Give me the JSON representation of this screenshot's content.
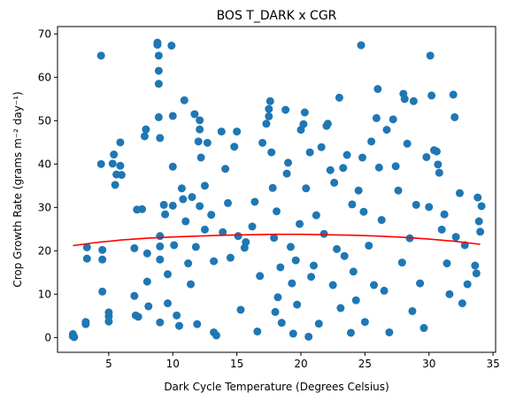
{
  "chart_data": {
    "type": "scatter",
    "title": "BOS T_DARK x CGR",
    "xlabel": "Dark Cycle Temperature (Degrees Celsius)",
    "ylabel": "Crop Growth Rate (grams m⁻² day⁻¹)",
    "xlim": [
      1,
      35.2
    ],
    "ylim": [
      -3.4,
      71.7
    ],
    "xticks": [
      5,
      10,
      15,
      20,
      25,
      30,
      35
    ],
    "yticks": [
      0,
      10,
      20,
      30,
      40,
      50,
      60,
      70
    ],
    "grid": false,
    "legend": "none",
    "colors": {
      "points": "#1f77b4",
      "fit": "#ff0000"
    },
    "series": [
      {
        "type": "scatter",
        "points": [
          [
            2.2,
            0.3
          ],
          [
            2.2,
            0.8
          ],
          [
            2.3,
            0.1
          ],
          [
            3.2,
            3.1
          ],
          [
            3.2,
            3.6
          ],
          [
            3.3,
            18.2
          ],
          [
            3.3,
            20.8
          ],
          [
            4.4,
            65.0
          ],
          [
            4.4,
            40.0
          ],
          [
            4.5,
            20.2
          ],
          [
            4.5,
            18.0
          ],
          [
            4.5,
            10.6
          ],
          [
            5.0,
            5.8
          ],
          [
            5.0,
            4.9
          ],
          [
            5.0,
            3.7
          ],
          [
            5.3,
            40.1
          ],
          [
            5.4,
            42.2
          ],
          [
            5.5,
            35.2
          ],
          [
            5.6,
            37.6
          ],
          [
            5.9,
            45.0
          ],
          [
            5.9,
            39.6
          ],
          [
            6.0,
            37.5
          ],
          [
            7.0,
            20.6
          ],
          [
            7.0,
            9.6
          ],
          [
            7.1,
            5.1
          ],
          [
            7.2,
            29.5
          ],
          [
            7.3,
            4.8
          ],
          [
            7.6,
            29.6
          ],
          [
            7.8,
            46.4
          ],
          [
            7.9,
            48.0
          ],
          [
            8.0,
            19.4
          ],
          [
            8.0,
            12.9
          ],
          [
            8.1,
            7.2
          ],
          [
            8.8,
            68.0
          ],
          [
            8.8,
            67.5
          ],
          [
            8.9,
            65.0
          ],
          [
            8.9,
            61.5
          ],
          [
            8.9,
            58.5
          ],
          [
            8.9,
            50.8
          ],
          [
            9.0,
            46.0
          ],
          [
            9.0,
            23.4
          ],
          [
            9.0,
            21.0
          ],
          [
            9.0,
            18.0
          ],
          [
            9.0,
            3.5
          ],
          [
            9.3,
            30.6
          ],
          [
            9.4,
            28.4
          ],
          [
            9.6,
            14.6
          ],
          [
            9.6,
            7.9
          ],
          [
            9.9,
            67.3
          ],
          [
            10.0,
            51.1
          ],
          [
            10.0,
            39.4
          ],
          [
            10.0,
            30.4
          ],
          [
            10.1,
            21.3
          ],
          [
            10.3,
            5.1
          ],
          [
            10.5,
            2.7
          ],
          [
            10.7,
            34.4
          ],
          [
            10.8,
            31.9
          ],
          [
            10.9,
            54.7
          ],
          [
            11.0,
            26.8
          ],
          [
            11.2,
            17.1
          ],
          [
            11.4,
            12.3
          ],
          [
            11.5,
            32.4
          ],
          [
            11.7,
            51.5
          ],
          [
            11.8,
            20.9
          ],
          [
            11.9,
            3.1
          ],
          [
            12.0,
            45.2
          ],
          [
            12.1,
            30.3
          ],
          [
            12.1,
            50.1
          ],
          [
            12.1,
            48.0
          ],
          [
            12.2,
            41.5
          ],
          [
            12.5,
            35.0
          ],
          [
            12.5,
            24.9
          ],
          [
            12.7,
            44.9
          ],
          [
            13.0,
            28.3
          ],
          [
            13.2,
            17.6
          ],
          [
            13.2,
            1.2
          ],
          [
            13.4,
            0.5
          ],
          [
            13.8,
            47.5
          ],
          [
            13.9,
            24.3
          ],
          [
            14.1,
            38.9
          ],
          [
            14.3,
            31.0
          ],
          [
            14.5,
            18.4
          ],
          [
            14.8,
            44.0
          ],
          [
            15.0,
            47.5
          ],
          [
            15.1,
            23.4
          ],
          [
            15.3,
            6.4
          ],
          [
            15.6,
            20.7
          ],
          [
            15.7,
            22.0
          ],
          [
            16.2,
            25.6
          ],
          [
            16.4,
            31.3
          ],
          [
            16.6,
            1.4
          ],
          [
            16.8,
            14.2
          ],
          [
            17.0,
            44.9
          ],
          [
            17.3,
            49.3
          ],
          [
            17.5,
            52.7
          ],
          [
            17.5,
            51.0
          ],
          [
            17.6,
            54.5
          ],
          [
            17.7,
            42.7
          ],
          [
            17.8,
            34.5
          ],
          [
            17.9,
            23.0
          ],
          [
            18.0,
            5.9
          ],
          [
            18.1,
            29.1
          ],
          [
            18.2,
            9.3
          ],
          [
            18.4,
            16.2
          ],
          [
            18.5,
            3.4
          ],
          [
            18.8,
            52.5
          ],
          [
            18.9,
            37.8
          ],
          [
            19.0,
            40.3
          ],
          [
            19.2,
            20.9
          ],
          [
            19.3,
            12.5
          ],
          [
            19.4,
            0.9
          ],
          [
            19.6,
            17.8
          ],
          [
            19.7,
            7.6
          ],
          [
            19.9,
            26.2
          ],
          [
            20.0,
            47.9
          ],
          [
            20.2,
            49.2
          ],
          [
            20.3,
            51.9
          ],
          [
            20.4,
            34.4
          ],
          [
            20.6,
            0.2
          ],
          [
            20.7,
            42.7
          ],
          [
            20.8,
            14.0
          ],
          [
            21.0,
            16.6
          ],
          [
            21.2,
            28.2
          ],
          [
            21.4,
            3.2
          ],
          [
            21.6,
            43.9
          ],
          [
            21.8,
            23.9
          ],
          [
            22.0,
            48.8
          ],
          [
            22.1,
            49.3
          ],
          [
            22.3,
            38.6
          ],
          [
            22.5,
            12.1
          ],
          [
            22.6,
            35.7
          ],
          [
            22.8,
            20.4
          ],
          [
            23.0,
            55.3
          ],
          [
            23.1,
            6.8
          ],
          [
            23.3,
            39.1
          ],
          [
            23.4,
            18.8
          ],
          [
            23.6,
            42.1
          ],
          [
            23.9,
            1.1
          ],
          [
            24.0,
            30.7
          ],
          [
            24.1,
            15.2
          ],
          [
            24.3,
            8.6
          ],
          [
            24.5,
            33.9
          ],
          [
            24.7,
            67.4
          ],
          [
            24.8,
            41.5
          ],
          [
            24.9,
            29.0
          ],
          [
            25.0,
            3.6
          ],
          [
            25.3,
            21.2
          ],
          [
            25.5,
            45.2
          ],
          [
            25.7,
            12.1
          ],
          [
            25.9,
            50.6
          ],
          [
            26.0,
            57.3
          ],
          [
            26.1,
            39.2
          ],
          [
            26.3,
            27.1
          ],
          [
            26.5,
            10.8
          ],
          [
            26.7,
            47.9
          ],
          [
            26.9,
            1.2
          ],
          [
            27.2,
            50.3
          ],
          [
            27.4,
            39.5
          ],
          [
            27.6,
            33.9
          ],
          [
            27.9,
            17.3
          ],
          [
            28.0,
            56.2
          ],
          [
            28.1,
            55.0
          ],
          [
            28.3,
            44.7
          ],
          [
            28.5,
            22.9
          ],
          [
            28.7,
            6.1
          ],
          [
            28.8,
            54.5
          ],
          [
            29.0,
            30.6
          ],
          [
            29.3,
            12.5
          ],
          [
            29.6,
            2.2
          ],
          [
            29.8,
            41.6
          ],
          [
            30.0,
            30.1
          ],
          [
            30.1,
            65.0
          ],
          [
            30.2,
            55.8
          ],
          [
            30.4,
            43.2
          ],
          [
            30.6,
            42.9
          ],
          [
            30.7,
            39.9
          ],
          [
            30.8,
            38.0
          ],
          [
            31.0,
            24.9
          ],
          [
            31.2,
            28.4
          ],
          [
            31.4,
            17.1
          ],
          [
            31.6,
            10.0
          ],
          [
            31.9,
            56.0
          ],
          [
            32.0,
            50.8
          ],
          [
            32.1,
            23.2
          ],
          [
            32.4,
            33.3
          ],
          [
            32.6,
            7.9
          ],
          [
            32.8,
            21.3
          ],
          [
            33.0,
            12.3
          ],
          [
            33.6,
            16.6
          ],
          [
            33.7,
            14.8
          ],
          [
            33.8,
            32.3
          ],
          [
            33.9,
            26.8
          ],
          [
            34.0,
            24.4
          ],
          [
            34.1,
            30.3
          ]
        ]
      },
      {
        "type": "line",
        "points": [
          [
            2.2,
            21.2
          ],
          [
            4,
            21.9
          ],
          [
            6,
            22.5
          ],
          [
            8,
            22.9
          ],
          [
            10,
            23.2
          ],
          [
            12,
            23.4
          ],
          [
            14,
            23.6
          ],
          [
            16,
            23.7
          ],
          [
            18,
            23.8
          ],
          [
            20,
            23.8
          ],
          [
            22,
            23.7
          ],
          [
            24,
            23.6
          ],
          [
            26,
            23.4
          ],
          [
            28,
            23.1
          ],
          [
            30,
            22.7
          ],
          [
            32,
            22.2
          ],
          [
            34,
            21.5
          ]
        ]
      }
    ]
  }
}
